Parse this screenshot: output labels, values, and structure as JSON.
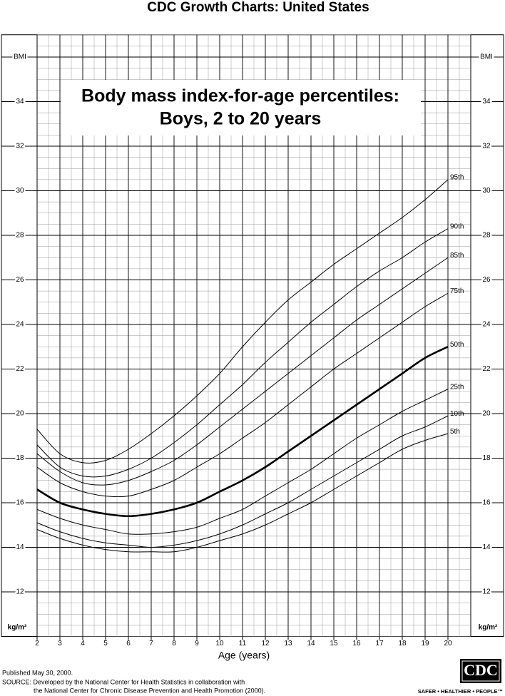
{
  "header": "CDC Growth Charts: United States",
  "chart_data": {
    "type": "line",
    "title": "Body mass index-for-age percentiles:",
    "subtitle": "Boys, 2 to 20 years",
    "x_label": "Age (years)",
    "y_unit": "kg/m²",
    "x": [
      2,
      3,
      4,
      5,
      6,
      7,
      8,
      9,
      10,
      11,
      12,
      13,
      14,
      15,
      16,
      17,
      18,
      19,
      20
    ],
    "series": [
      {
        "name": "95th",
        "color": "#000000",
        "line_width": 1,
        "values": [
          19.3,
          18.2,
          17.8,
          17.9,
          18.4,
          19.1,
          19.9,
          20.8,
          21.8,
          23.0,
          24.1,
          25.1,
          25.9,
          26.7,
          27.4,
          28.1,
          28.8,
          29.6,
          30.5
        ]
      },
      {
        "name": "90th",
        "color": "#000000",
        "line_width": 1,
        "values": [
          18.6,
          17.6,
          17.2,
          17.2,
          17.5,
          18.0,
          18.7,
          19.5,
          20.4,
          21.3,
          22.3,
          23.2,
          24.1,
          24.9,
          25.7,
          26.4,
          27.0,
          27.7,
          28.3
        ]
      },
      {
        "name": "85th",
        "color": "#000000",
        "line_width": 1,
        "values": [
          18.2,
          17.4,
          16.9,
          16.8,
          17.0,
          17.4,
          17.9,
          18.6,
          19.4,
          20.2,
          21.0,
          21.8,
          22.6,
          23.4,
          24.2,
          24.9,
          25.6,
          26.3,
          27.0
        ]
      },
      {
        "name": "75th",
        "color": "#000000",
        "line_width": 1,
        "values": [
          17.6,
          16.9,
          16.5,
          16.3,
          16.3,
          16.6,
          17.0,
          17.6,
          18.2,
          18.9,
          19.6,
          20.4,
          21.2,
          22.0,
          22.7,
          23.4,
          24.1,
          24.8,
          25.4
        ]
      },
      {
        "name": "50th",
        "color": "#000000",
        "line_width": 2.6,
        "values": [
          16.6,
          16.0,
          15.7,
          15.5,
          15.4,
          15.5,
          15.7,
          16.0,
          16.5,
          17.0,
          17.6,
          18.3,
          19.0,
          19.7,
          20.4,
          21.1,
          21.8,
          22.5,
          23.0
        ]
      },
      {
        "name": "25th",
        "color": "#000000",
        "line_width": 1,
        "values": [
          15.7,
          15.3,
          15.0,
          14.8,
          14.6,
          14.6,
          14.7,
          14.9,
          15.3,
          15.7,
          16.3,
          16.9,
          17.5,
          18.2,
          18.9,
          19.5,
          20.1,
          20.6,
          21.1
        ]
      },
      {
        "name": "10th",
        "color": "#000000",
        "line_width": 1,
        "values": [
          15.1,
          14.7,
          14.4,
          14.2,
          14.1,
          14.0,
          14.1,
          14.3,
          14.6,
          15.0,
          15.5,
          16.0,
          16.6,
          17.2,
          17.8,
          18.4,
          19.0,
          19.4,
          19.9
        ]
      },
      {
        "name": "5th",
        "color": "#000000",
        "line_width": 1,
        "values": [
          14.8,
          14.4,
          14.1,
          13.9,
          13.8,
          13.8,
          13.8,
          14.0,
          14.3,
          14.6,
          15.0,
          15.5,
          16.0,
          16.6,
          17.2,
          17.8,
          18.4,
          18.8,
          19.1
        ]
      }
    ],
    "xlim": [
      2,
      21
    ],
    "ylim": [
      10,
      37
    ],
    "xticks": [
      2,
      3,
      4,
      5,
      6,
      7,
      8,
      9,
      10,
      11,
      12,
      13,
      14,
      15,
      16,
      17,
      18,
      19,
      20
    ],
    "yticks": [
      12,
      14,
      16,
      18,
      20,
      22,
      24,
      26,
      28,
      30,
      32,
      34,
      {
        "value": 36,
        "label": "BMI"
      }
    ],
    "grid": true,
    "minor_grid_step": {
      "x": 0.5,
      "y": 0.5
    }
  },
  "footer": {
    "published": "Published May 30, 2000.",
    "source_1": "SOURCE: Developed by the National Center for Health Statistics in collaboration with",
    "source_2": "the National Center for Chronic Disease Prevention and Health Promotion (2000).",
    "logo": "CDC",
    "tagline": "SAFER • HEALTHIER • PEOPLE™"
  }
}
